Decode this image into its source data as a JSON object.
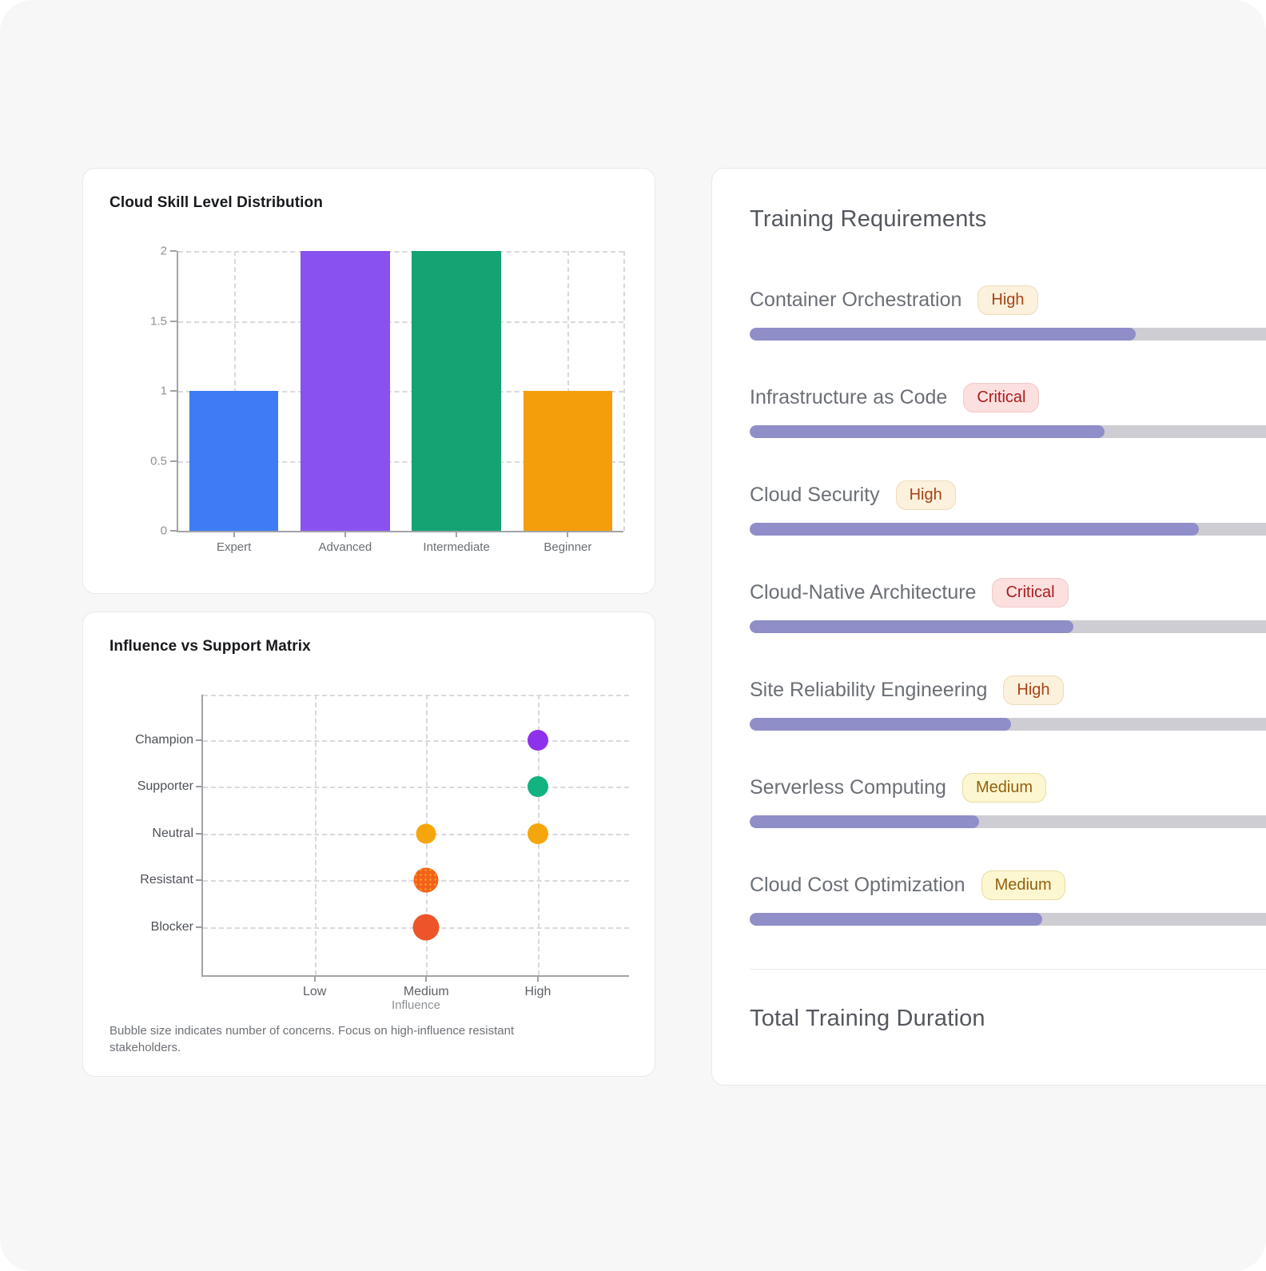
{
  "page": {
    "background": "#f7f7f8"
  },
  "chart_data": [
    {
      "type": "bar",
      "title": "Cloud Skill Level Distribution",
      "categories": [
        "Expert",
        "Advanced",
        "Intermediate",
        "Beginner"
      ],
      "values": [
        1,
        2,
        2,
        1
      ],
      "bar_colors": [
        "#3e7cf6",
        "#8951f0",
        "#14a473",
        "#f49e0b"
      ],
      "xlabel": "",
      "ylabel": "",
      "ylim": [
        0,
        2
      ],
      "ytick_labels_top_to_bottom": [
        "2",
        "1.5",
        "1",
        "0.5",
        "0"
      ],
      "grid": "dashed"
    },
    {
      "type": "bubble",
      "title": "Influence vs Support Matrix",
      "xlabel": "Influence",
      "x_categories": [
        "Low",
        "Medium",
        "High"
      ],
      "y_categories_top_to_bottom": [
        "Champion",
        "Supporter",
        "Neutral",
        "Resistant",
        "Blocker"
      ],
      "points": [
        {
          "x": "High",
          "y": "Champion",
          "color": "#8d32ea",
          "diameter": 26,
          "patterned": false
        },
        {
          "x": "High",
          "y": "Supporter",
          "color": "#12b381",
          "diameter": 26,
          "patterned": false
        },
        {
          "x": "Medium",
          "y": "Neutral",
          "color": "#f5a60d",
          "diameter": 25,
          "patterned": false
        },
        {
          "x": "High",
          "y": "Neutral",
          "color": "#f5a60d",
          "diameter": 26,
          "patterned": false
        },
        {
          "x": "Medium",
          "y": "Resistant",
          "color": "#f4601c",
          "dot_color": "#f8a91c",
          "diameter": 31,
          "patterned": true
        },
        {
          "x": "Medium",
          "y": "Blocker",
          "color": "#ee5429",
          "diameter": 33,
          "patterned": false
        }
      ],
      "caption": "Bubble size indicates number of concerns. Focus on high-influence resistant stakeholders.",
      "grid": "dashed"
    }
  ],
  "training": {
    "title": "Training Requirements",
    "items": [
      {
        "label": "Container Orchestration",
        "priority": "High",
        "fill_percent": 74
      },
      {
        "label": "Infrastructure as Code",
        "priority": "Critical",
        "fill_percent": 68
      },
      {
        "label": "Cloud Security",
        "priority": "High",
        "fill_percent": 86
      },
      {
        "label": "Cloud-Native Architecture",
        "priority": "Critical",
        "fill_percent": 62
      },
      {
        "label": "Site Reliability Engineering",
        "priority": "High",
        "fill_percent": 50
      },
      {
        "label": "Serverless Computing",
        "priority": "Medium",
        "fill_percent": 44
      },
      {
        "label": "Cloud Cost Optimization",
        "priority": "Medium",
        "fill_percent": 56
      }
    ],
    "footer_title": "Total Training Duration",
    "badge_styles": {
      "High": {
        "bg": "#fbf1dd",
        "border": "#eddcba",
        "text": "#a84315"
      },
      "Critical": {
        "bg": "#fcdfdf",
        "border": "#f3c9c9",
        "text": "#a81d1d"
      },
      "Medium": {
        "bg": "#fcf6d1",
        "border": "#e9dd9f",
        "text": "#93610d"
      }
    },
    "progress_colors": {
      "fill": "#8f8ec8",
      "track": "#cecdd3"
    }
  }
}
